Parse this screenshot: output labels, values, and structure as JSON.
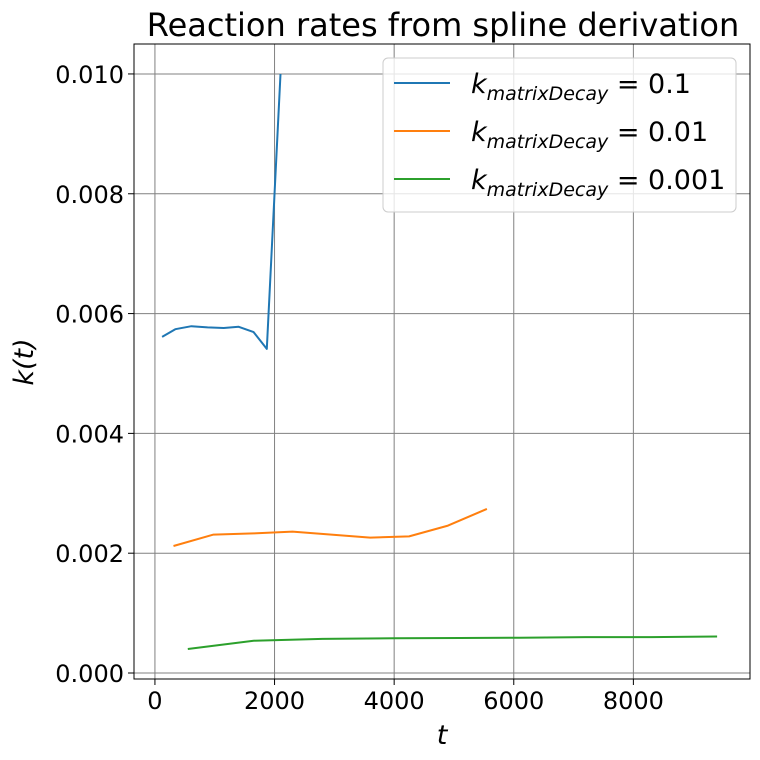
{
  "chart_data": {
    "type": "line",
    "title": "Reaction rates from spline derivation",
    "xlabel": "t",
    "ylabel": "k(t)",
    "xlim": [
      -350,
      9950
    ],
    "ylim": [
      -0.0001,
      0.0105
    ],
    "xticks": [
      0,
      2000,
      4000,
      6000,
      8000
    ],
    "xtick_labels": [
      "0",
      "2000",
      "4000",
      "6000",
      "8000"
    ],
    "yticks": [
      0.0,
      0.002,
      0.004,
      0.006,
      0.008,
      0.01
    ],
    "ytick_labels": [
      "0.000",
      "0.002",
      "0.004",
      "0.006",
      "0.008",
      "0.010"
    ],
    "grid": true,
    "legend_position": "top-right",
    "series": [
      {
        "name_main": "k",
        "name_sub": "matrixDecay",
        "name_rest": " = 0.1",
        "color": "#1f77b4",
        "x": [
          120,
          340,
          610,
          880,
          1150,
          1400,
          1650,
          1870,
          2100
        ],
        "y": [
          0.00561,
          0.00574,
          0.00579,
          0.00577,
          0.00576,
          0.00578,
          0.00569,
          0.00541,
          0.01
        ]
      },
      {
        "name_main": "k",
        "name_sub": "matrixDecay",
        "name_rest": " = 0.01",
        "color": "#ff7f0e",
        "x": [
          310,
          980,
          1650,
          2300,
          2950,
          3600,
          4250,
          4900,
          5550
        ],
        "y": [
          0.00212,
          0.00231,
          0.00233,
          0.00236,
          0.00231,
          0.00226,
          0.00228,
          0.00246,
          0.00274
        ]
      },
      {
        "name_main": "k",
        "name_sub": "matrixDecay",
        "name_rest": " = 0.001",
        "color": "#2ca02c",
        "x": [
          550,
          1650,
          2800,
          4000,
          5100,
          6100,
          7200,
          8300,
          9400
        ],
        "y": [
          0.0004,
          0.00054,
          0.00057,
          0.00058,
          0.000585,
          0.00059,
          0.0006,
          0.0006,
          0.00061
        ]
      }
    ]
  }
}
